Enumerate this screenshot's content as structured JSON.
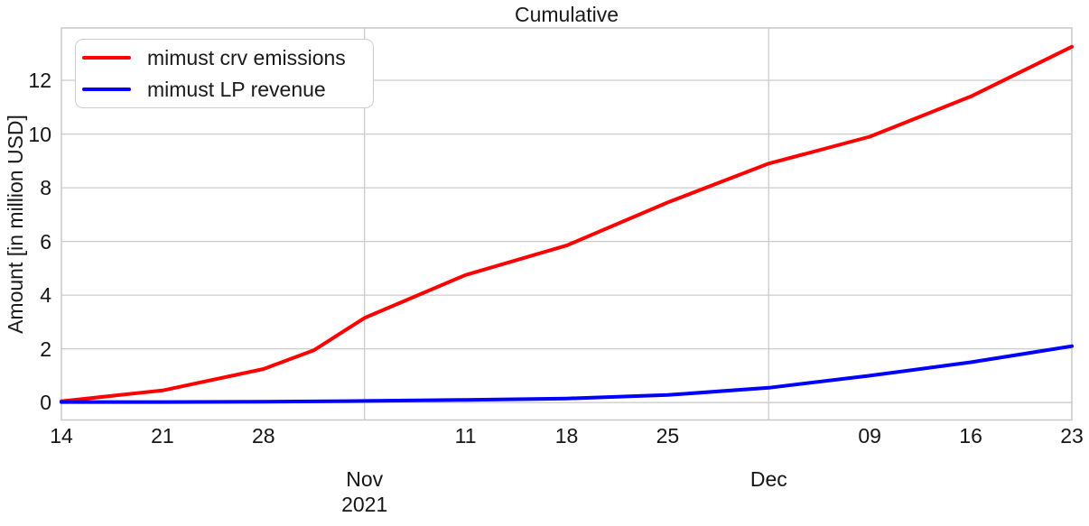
{
  "chart_data": {
    "type": "line",
    "title": "Cumulative",
    "ylabel": "Amount [in million USD]",
    "xlabel": "",
    "ylim": [
      -0.65,
      13.95
    ],
    "yticks": [
      0,
      2,
      4,
      6,
      8,
      10,
      12
    ],
    "x_range": [
      0,
      10
    ],
    "grid": true,
    "legend_position": "upper left",
    "x_tick_labels": [
      {
        "position": 0,
        "label": "14"
      },
      {
        "position": 1,
        "label": "21"
      },
      {
        "position": 2,
        "label": "28"
      },
      {
        "position": 4,
        "label": "11"
      },
      {
        "position": 5,
        "label": "18"
      },
      {
        "position": 6,
        "label": "25"
      },
      {
        "position": 8,
        "label": "09"
      },
      {
        "position": 9,
        "label": "16"
      },
      {
        "position": 10,
        "label": "23"
      }
    ],
    "x_month_labels": [
      {
        "position": 3,
        "line1": "Nov",
        "line2": "2021"
      },
      {
        "position": 7,
        "line1": "Dec",
        "line2": ""
      }
    ],
    "vertical_gridline_positions": [
      3,
      7
    ],
    "series": [
      {
        "name": "mimust crv emissions",
        "color": "#ff0000",
        "x": [
          0,
          1,
          2,
          2.5,
          3,
          4,
          5,
          6,
          7,
          8,
          9,
          10
        ],
        "y": [
          0.05,
          0.45,
          1.25,
          1.95,
          3.15,
          4.75,
          5.85,
          7.45,
          8.9,
          9.9,
          11.4,
          13.25
        ]
      },
      {
        "name": "mimust LP revenue",
        "color": "#0000ff",
        "x": [
          0,
          1,
          2,
          3,
          4,
          5,
          6,
          7,
          8,
          9,
          10
        ],
        "y": [
          0.02,
          0.02,
          0.03,
          0.06,
          0.1,
          0.15,
          0.28,
          0.55,
          1.0,
          1.5,
          2.1
        ]
      }
    ],
    "colors": {
      "grid": "#cccccc",
      "spine": "#c8c8c8",
      "text": "#1a1a1a"
    }
  }
}
